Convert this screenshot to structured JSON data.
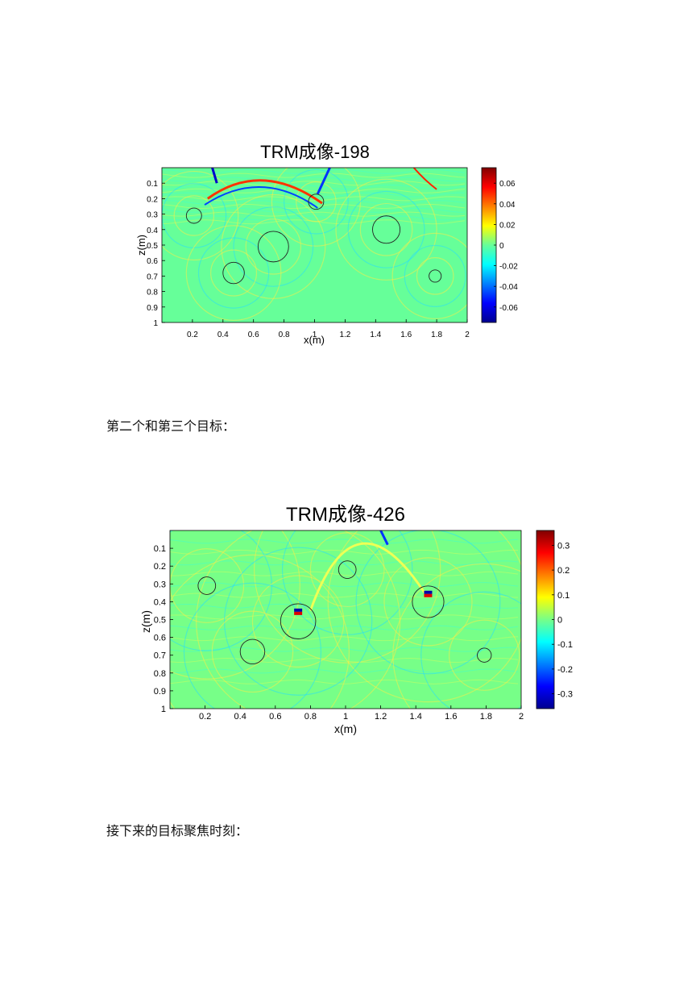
{
  "figures": [
    {
      "title": "TRM成像-198",
      "chart_data": {
        "type": "heatmap",
        "title": "TRM成像-198",
        "xlabel": "x(m)",
        "ylabel": "z(m)",
        "xlim": [
          0,
          2
        ],
        "ylim": [
          1,
          0
        ],
        "x_ticks": [
          "0.2",
          "0.4",
          "0.6",
          "0.8",
          "1",
          "1.2",
          "1.4",
          "1.6",
          "1.8",
          "2"
        ],
        "y_ticks": [
          "0.1",
          "0.2",
          "0.3",
          "0.4",
          "0.5",
          "0.6",
          "0.7",
          "0.8",
          "0.9",
          "1"
        ],
        "colorbar": {
          "range": [
            -0.075,
            0.075
          ],
          "ticks": [
            "0.06",
            "0.04",
            "0.02",
            "0",
            "-0.02",
            "-0.04",
            "-0.06"
          ],
          "colormap": "jet"
        },
        "targets": [
          {
            "x": 0.21,
            "z": 0.31,
            "r": 0.05
          },
          {
            "x": 1.01,
            "z": 0.22,
            "r": 0.05
          },
          {
            "x": 1.47,
            "z": 0.4,
            "r": 0.09
          },
          {
            "x": 0.73,
            "z": 0.51,
            "r": 0.1
          },
          {
            "x": 0.47,
            "z": 0.68,
            "r": 0.07
          },
          {
            "x": 1.79,
            "z": 0.7,
            "r": 0.04
          }
        ],
        "background_color": "#66ff99",
        "wave_region_depth": 0.35
      }
    },
    {
      "title": "TRM成像-426",
      "chart_data": {
        "type": "heatmap",
        "title": "TRM成像-426",
        "xlabel": "x(m)",
        "ylabel": "z(m)",
        "xlim": [
          0,
          2
        ],
        "ylim": [
          1,
          0
        ],
        "x_ticks": [
          "0.2",
          "0.4",
          "0.6",
          "0.8",
          "1",
          "1.2",
          "1.4",
          "1.6",
          "1.8",
          "2"
        ],
        "y_ticks": [
          "0.1",
          "0.2",
          "0.3",
          "0.4",
          "0.5",
          "0.6",
          "0.7",
          "0.8",
          "0.9",
          "1"
        ],
        "colorbar": {
          "range": [
            -0.36,
            0.36
          ],
          "ticks": [
            "0.3",
            "0.2",
            "0.1",
            "0",
            "-0.1",
            "-0.2",
            "-0.3"
          ],
          "colormap": "jet"
        },
        "targets": [
          {
            "x": 0.21,
            "z": 0.31,
            "r": 0.05
          },
          {
            "x": 1.01,
            "z": 0.22,
            "r": 0.05
          },
          {
            "x": 1.47,
            "z": 0.4,
            "r": 0.09
          },
          {
            "x": 0.73,
            "z": 0.51,
            "r": 0.1
          },
          {
            "x": 0.47,
            "z": 0.68,
            "r": 0.07
          },
          {
            "x": 1.79,
            "z": 0.7,
            "r": 0.04
          }
        ],
        "background_color": "#77ff88",
        "wave_region_depth": 0.85
      }
    }
  ],
  "captions": [
    "第二个和第三个目标：",
    "接下来的目标聚焦时刻："
  ]
}
